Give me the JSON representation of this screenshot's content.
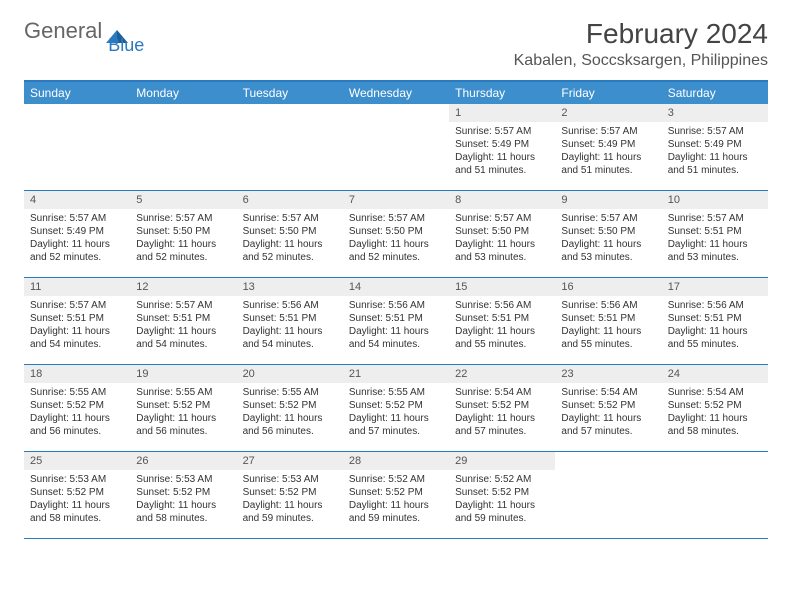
{
  "brand": {
    "part1": "General",
    "part2": "Blue"
  },
  "title": "February 2024",
  "location": "Kabalen, Soccsksargen, Philippines",
  "colors": {
    "header_bg": "#3d8ecd",
    "header_text": "#ffffff",
    "accent_border": "#2a7ac0",
    "daynum_bg": "#eeeeee",
    "body_text": "#333333",
    "logo_blue": "#2a7ac0",
    "logo_grey": "#666666"
  },
  "day_names": [
    "Sunday",
    "Monday",
    "Tuesday",
    "Wednesday",
    "Thursday",
    "Friday",
    "Saturday"
  ],
  "weeks": [
    [
      null,
      null,
      null,
      null,
      {
        "n": "1",
        "sr": "5:57 AM",
        "ss": "5:49 PM",
        "dl": "11 hours and 51 minutes."
      },
      {
        "n": "2",
        "sr": "5:57 AM",
        "ss": "5:49 PM",
        "dl": "11 hours and 51 minutes."
      },
      {
        "n": "3",
        "sr": "5:57 AM",
        "ss": "5:49 PM",
        "dl": "11 hours and 51 minutes."
      }
    ],
    [
      {
        "n": "4",
        "sr": "5:57 AM",
        "ss": "5:49 PM",
        "dl": "11 hours and 52 minutes."
      },
      {
        "n": "5",
        "sr": "5:57 AM",
        "ss": "5:50 PM",
        "dl": "11 hours and 52 minutes."
      },
      {
        "n": "6",
        "sr": "5:57 AM",
        "ss": "5:50 PM",
        "dl": "11 hours and 52 minutes."
      },
      {
        "n": "7",
        "sr": "5:57 AM",
        "ss": "5:50 PM",
        "dl": "11 hours and 52 minutes."
      },
      {
        "n": "8",
        "sr": "5:57 AM",
        "ss": "5:50 PM",
        "dl": "11 hours and 53 minutes."
      },
      {
        "n": "9",
        "sr": "5:57 AM",
        "ss": "5:50 PM",
        "dl": "11 hours and 53 minutes."
      },
      {
        "n": "10",
        "sr": "5:57 AM",
        "ss": "5:51 PM",
        "dl": "11 hours and 53 minutes."
      }
    ],
    [
      {
        "n": "11",
        "sr": "5:57 AM",
        "ss": "5:51 PM",
        "dl": "11 hours and 54 minutes."
      },
      {
        "n": "12",
        "sr": "5:57 AM",
        "ss": "5:51 PM",
        "dl": "11 hours and 54 minutes."
      },
      {
        "n": "13",
        "sr": "5:56 AM",
        "ss": "5:51 PM",
        "dl": "11 hours and 54 minutes."
      },
      {
        "n": "14",
        "sr": "5:56 AM",
        "ss": "5:51 PM",
        "dl": "11 hours and 54 minutes."
      },
      {
        "n": "15",
        "sr": "5:56 AM",
        "ss": "5:51 PM",
        "dl": "11 hours and 55 minutes."
      },
      {
        "n": "16",
        "sr": "5:56 AM",
        "ss": "5:51 PM",
        "dl": "11 hours and 55 minutes."
      },
      {
        "n": "17",
        "sr": "5:56 AM",
        "ss": "5:51 PM",
        "dl": "11 hours and 55 minutes."
      }
    ],
    [
      {
        "n": "18",
        "sr": "5:55 AM",
        "ss": "5:52 PM",
        "dl": "11 hours and 56 minutes."
      },
      {
        "n": "19",
        "sr": "5:55 AM",
        "ss": "5:52 PM",
        "dl": "11 hours and 56 minutes."
      },
      {
        "n": "20",
        "sr": "5:55 AM",
        "ss": "5:52 PM",
        "dl": "11 hours and 56 minutes."
      },
      {
        "n": "21",
        "sr": "5:55 AM",
        "ss": "5:52 PM",
        "dl": "11 hours and 57 minutes."
      },
      {
        "n": "22",
        "sr": "5:54 AM",
        "ss": "5:52 PM",
        "dl": "11 hours and 57 minutes."
      },
      {
        "n": "23",
        "sr": "5:54 AM",
        "ss": "5:52 PM",
        "dl": "11 hours and 57 minutes."
      },
      {
        "n": "24",
        "sr": "5:54 AM",
        "ss": "5:52 PM",
        "dl": "11 hours and 58 minutes."
      }
    ],
    [
      {
        "n": "25",
        "sr": "5:53 AM",
        "ss": "5:52 PM",
        "dl": "11 hours and 58 minutes."
      },
      {
        "n": "26",
        "sr": "5:53 AM",
        "ss": "5:52 PM",
        "dl": "11 hours and 58 minutes."
      },
      {
        "n": "27",
        "sr": "5:53 AM",
        "ss": "5:52 PM",
        "dl": "11 hours and 59 minutes."
      },
      {
        "n": "28",
        "sr": "5:52 AM",
        "ss": "5:52 PM",
        "dl": "11 hours and 59 minutes."
      },
      {
        "n": "29",
        "sr": "5:52 AM",
        "ss": "5:52 PM",
        "dl": "11 hours and 59 minutes."
      },
      null,
      null
    ]
  ],
  "labels": {
    "sunrise": "Sunrise: ",
    "sunset": "Sunset: ",
    "daylight": "Daylight: "
  }
}
